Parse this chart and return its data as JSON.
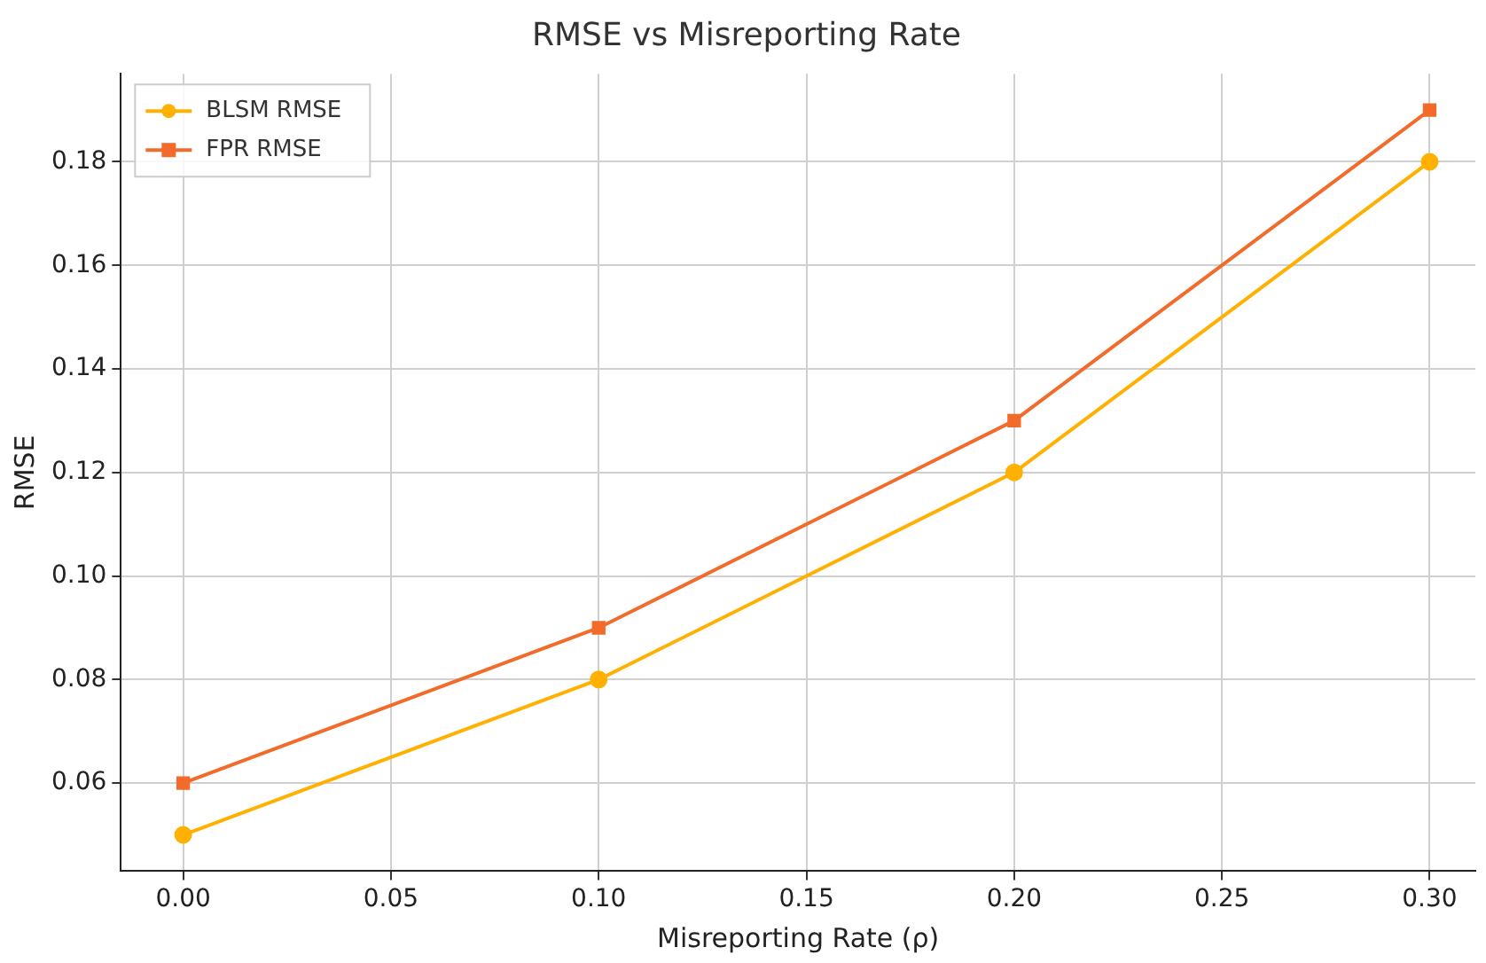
{
  "chart_data": {
    "type": "line",
    "title": "RMSE vs Misreporting Rate",
    "xlabel": "Misreporting Rate (ρ)",
    "ylabel": "RMSE",
    "x": [
      0.0,
      0.1,
      0.2,
      0.3
    ],
    "series": [
      {
        "name": "BLSM RMSE",
        "color": "#ffb000",
        "marker": "circle",
        "values": [
          0.05,
          0.08,
          0.12,
          0.18
        ]
      },
      {
        "name": "FPR RMSE",
        "color": "#f26b2a",
        "marker": "square",
        "values": [
          0.06,
          0.09,
          0.13,
          0.19
        ]
      }
    ],
    "xlim": [
      -0.015,
      0.311
    ],
    "xticks": [
      {
        "value": 0,
        "label": "0.00"
      },
      0.05,
      {
        "value": 0.1,
        "label": "0.10"
      },
      0.15,
      {
        "value": 0.2,
        "label": "0.20"
      },
      0.25,
      {
        "value": 0.3,
        "label": "0.30"
      }
    ],
    "ylim": [
      0.043,
      0.197
    ],
    "yticks": [
      0.06,
      0.08,
      {
        "value": 0.1,
        "label": "0.10"
      },
      0.12,
      0.14,
      0.16,
      0.18
    ],
    "grid": true,
    "legend": "top left",
    "line_style": "solid"
  }
}
